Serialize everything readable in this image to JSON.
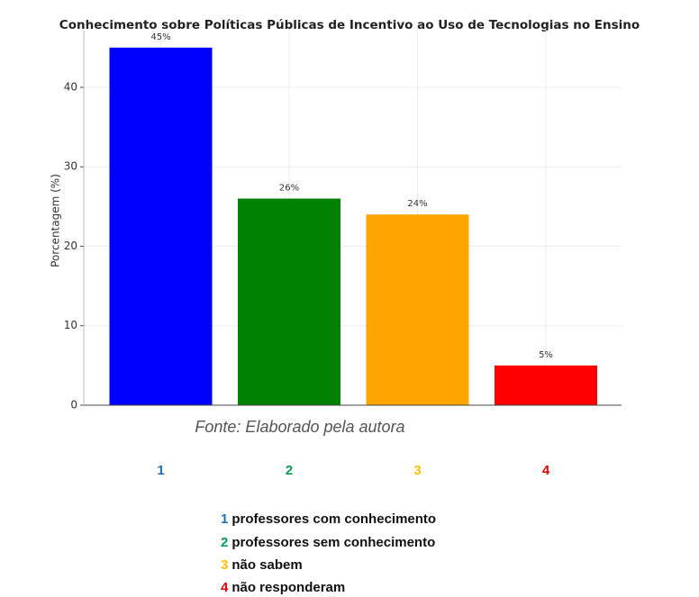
{
  "chart_data": {
    "type": "bar",
    "title": "Conhecimento sobre Políticas Públicas de Incentivo ao Uso de Tecnologias no Ensino",
    "y_label": "Porcentagem (%)",
    "categories": [
      "1",
      "2",
      "3",
      "4"
    ],
    "values": [
      45,
      26,
      24,
      5
    ],
    "value_labels": [
      "45%",
      "26%",
      "24%",
      "5%"
    ],
    "colors": [
      "#0000ff",
      "#008000",
      "#ffa500",
      "#ff0000"
    ],
    "label_colors": [
      "#1f6fbf",
      "#00a050",
      "#ffc000",
      "#e00000"
    ],
    "ylim": [
      0,
      47.25
    ],
    "yticks": [
      0,
      10,
      20,
      30,
      40
    ],
    "grid": true,
    "source": "Fonte: Elaborado pela autora",
    "legend": [
      "professores com conhecimento",
      "professores sem conhecimento",
      "não sabem",
      "não responderam"
    ]
  }
}
